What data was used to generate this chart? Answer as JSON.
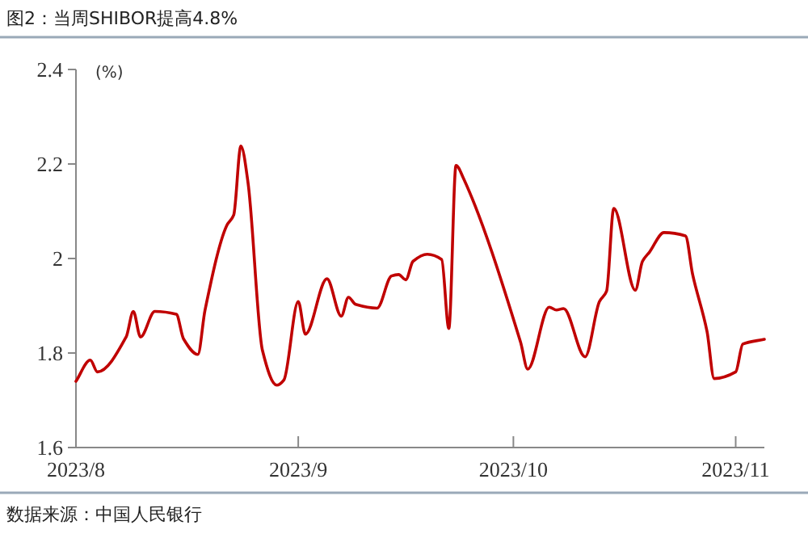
{
  "chart_data": {
    "type": "line",
    "title": "图2：当周SHIBOR提高4.8%",
    "ylabel": "(%)",
    "color": "#c00000",
    "line_style": "solid",
    "x": [
      "2023-08-01",
      "2023-08-03",
      "2023-08-04",
      "2023-08-08",
      "2023-08-09",
      "2023-08-10",
      "2023-08-12",
      "2023-08-15",
      "2023-08-16",
      "2023-08-18",
      "2023-08-19",
      "2023-08-22",
      "2023-08-23",
      "2023-08-24",
      "2023-08-25",
      "2023-08-27",
      "2023-08-29",
      "2023-08-30",
      "2023-09-01",
      "2023-09-02",
      "2023-09-05",
      "2023-09-07",
      "2023-09-08",
      "2023-09-09",
      "2023-09-12",
      "2023-09-14",
      "2023-09-15",
      "2023-09-16",
      "2023-09-17",
      "2023-09-19",
      "2023-09-21",
      "2023-09-22",
      "2023-09-23",
      "2023-09-24",
      "2023-10-02",
      "2023-10-03",
      "2023-10-06",
      "2023-10-07",
      "2023-10-08",
      "2023-10-11",
      "2023-10-13",
      "2023-10-14",
      "2023-10-15",
      "2023-10-18",
      "2023-10-19",
      "2023-10-20",
      "2023-10-22",
      "2023-10-25",
      "2023-10-26",
      "2023-10-28",
      "2023-10-29",
      "2023-11-01",
      "2023-11-02",
      "2023-11-05"
    ],
    "values": [
      1.74,
      1.785,
      1.76,
      1.834,
      1.888,
      1.834,
      1.888,
      1.882,
      1.83,
      1.797,
      1.891,
      2.069,
      2.092,
      2.238,
      2.16,
      1.806,
      1.732,
      1.743,
      1.909,
      1.84,
      1.957,
      1.878,
      1.918,
      1.903,
      1.895,
      1.963,
      1.966,
      1.955,
      1.994,
      2.009,
      1.998,
      1.852,
      2.197,
      2.171,
      1.823,
      1.766,
      1.897,
      1.891,
      1.894,
      1.792,
      1.909,
      1.931,
      2.106,
      1.933,
      1.994,
      2.014,
      2.055,
      2.048,
      1.966,
      1.846,
      1.746,
      1.76,
      1.819,
      1.829
    ],
    "xlim": [
      "2023-08-01",
      "2023-11-05"
    ],
    "xticks": [
      {
        "value": "2023-08-01",
        "label": "2023/8"
      },
      {
        "value": "2023-09-01",
        "label": "2023/9"
      },
      {
        "value": "2023-10-01",
        "label": "2023/10"
      },
      {
        "value": "2023-11-01",
        "label": "2023/11"
      }
    ],
    "ylim": [
      1.6,
      2.4
    ],
    "yticks": [
      1.6,
      1.8,
      2,
      2.2,
      2.4
    ],
    "annotations": [
      "数据来源：中国人民银行"
    ]
  }
}
